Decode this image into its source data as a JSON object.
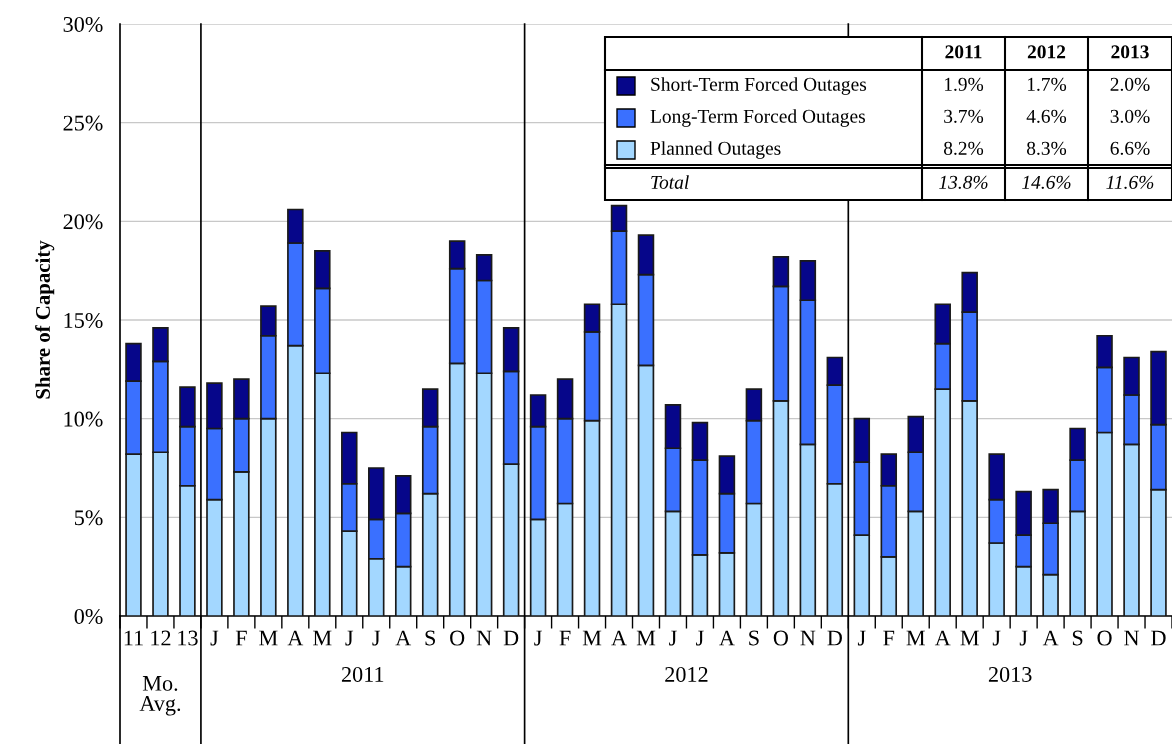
{
  "chart_data": {
    "type": "bar",
    "stacked": true,
    "ylabel": "Share of Capacity",
    "categories": [
      "11",
      "12",
      "13",
      "J",
      "F",
      "M",
      "A",
      "M",
      "J",
      "J",
      "A",
      "S",
      "O",
      "N",
      "D",
      "J",
      "F",
      "M",
      "A",
      "M",
      "J",
      "J",
      "A",
      "S",
      "O",
      "N",
      "D",
      "J",
      "F",
      "M",
      "A",
      "M",
      "J",
      "J",
      "A",
      "S",
      "O",
      "N",
      "D"
    ],
    "series": [
      {
        "name": "Planned Outages",
        "color": "#a3d7ff",
        "values": [
          8.2,
          8.3,
          6.6,
          5.9,
          7.3,
          10.0,
          13.7,
          12.3,
          4.3,
          2.9,
          2.5,
          6.2,
          12.8,
          12.3,
          7.7,
          4.9,
          5.7,
          9.9,
          15.8,
          12.7,
          5.3,
          3.1,
          3.2,
          5.7,
          10.9,
          8.7,
          6.7,
          4.1,
          3.0,
          5.3,
          11.5,
          10.9,
          3.7,
          2.5,
          2.1,
          5.3,
          9.3,
          8.7,
          6.4
        ]
      },
      {
        "name": "Long-Term Forced Outages",
        "color": "#3a70ff",
        "values": [
          3.7,
          4.6,
          3.0,
          3.6,
          2.7,
          4.2,
          5.2,
          4.3,
          2.4,
          2.0,
          2.7,
          3.4,
          4.8,
          4.7,
          4.7,
          4.7,
          4.3,
          4.5,
          3.7,
          4.6,
          3.2,
          4.8,
          3.0,
          4.2,
          5.8,
          7.3,
          5.0,
          3.7,
          3.6,
          3.0,
          2.3,
          4.5,
          2.2,
          1.6,
          2.6,
          2.6,
          3.3,
          2.5,
          3.3
        ]
      },
      {
        "name": "Short-Term Forced Outages",
        "color": "#06068a",
        "values": [
          1.9,
          1.7,
          2.0,
          2.3,
          2.0,
          1.5,
          1.7,
          1.9,
          2.6,
          2.6,
          1.9,
          1.9,
          1.4,
          1.3,
          2.2,
          1.6,
          2.0,
          1.4,
          1.3,
          2.0,
          2.2,
          1.9,
          1.9,
          1.6,
          1.5,
          2.0,
          1.4,
          2.2,
          1.6,
          1.8,
          2.0,
          2.0,
          2.3,
          2.2,
          1.7,
          1.6,
          1.6,
          1.9,
          3.7
        ]
      }
    ],
    "ylim": [
      0,
      30
    ],
    "yticks": [
      {
        "value": 0,
        "label": "0%"
      },
      {
        "value": 5,
        "label": "5%"
      },
      {
        "value": 10,
        "label": "10%"
      },
      {
        "value": 15,
        "label": "15%"
      },
      {
        "value": 20,
        "label": "20%"
      },
      {
        "value": 25,
        "label": "25%"
      },
      {
        "value": 30,
        "label": "30%"
      }
    ],
    "grid": "y",
    "legend": "top right",
    "annotations": [
      "Mo.\nAvg.",
      "2011",
      "2012",
      "2013",
      "2011",
      "2012",
      "2013",
      "1.9%",
      "1.7%",
      "2.0%",
      "3.7%",
      "4.6%",
      "3.0%",
      "8.2%",
      "8.3%",
      "6.6%",
      "Total",
      "13.8%",
      "14.6%",
      "11.6%"
    ]
  }
}
